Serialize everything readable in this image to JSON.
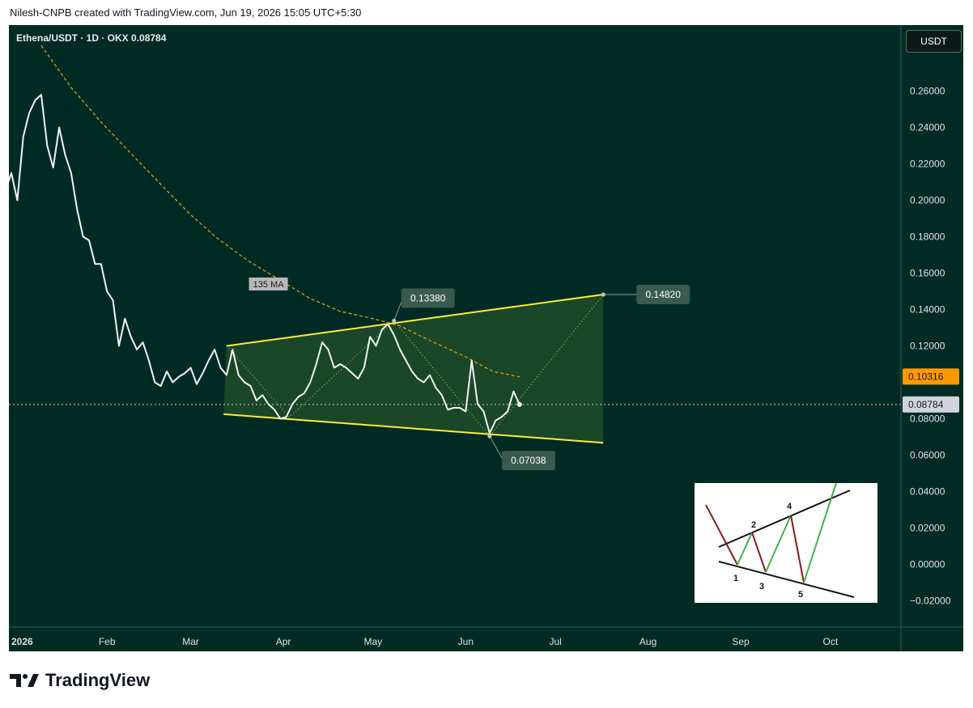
{
  "header": {
    "credit": "Nilesh-CNPB created with TradingView.com, Jun 19, 2026 15:05 UTC+5:30"
  },
  "symbol": {
    "title": "Ethena/USDT · 1D · OKX  0.08784",
    "currency": "USDT"
  },
  "footer": {
    "brand": "TradingView"
  },
  "colors": {
    "background": "#002b24",
    "price_line": "#f2f2f2",
    "channel": "#ffeb3b",
    "ma": "#f0a020",
    "ma_badge": "#ff9800",
    "price_badge": "#d1d4dc",
    "label_box": "#3a5a50"
  },
  "chart_data": {
    "type": "line",
    "title": "Ethena/USDT · 1D · OKX",
    "ylim": [
      -0.028,
      0.285
    ],
    "y_ticks": [
      "0.26000",
      "0.24000",
      "0.22000",
      "0.20000",
      "0.18000",
      "0.16000",
      "0.14000",
      "0.12000",
      "0.08000",
      "0.06000",
      "0.04000",
      "0.02000",
      "0.00000",
      "−0.02000"
    ],
    "x_ticks": [
      "2026",
      "Feb",
      "Mar",
      "Apr",
      "May",
      "Jun",
      "Jul",
      "Aug",
      "Sep",
      "Oct"
    ],
    "series": [
      {
        "name": "Ethena/USDT",
        "x": [
          "2025-12-27",
          "2025-12-29",
          "2025-12-31",
          "2026-01-02",
          "2026-01-04",
          "2026-01-06",
          "2026-01-08",
          "2026-01-10",
          "2026-01-12",
          "2026-01-14",
          "2026-01-16",
          "2026-01-18",
          "2026-01-20",
          "2026-01-22",
          "2026-01-24",
          "2026-01-26",
          "2026-01-28",
          "2026-01-30",
          "2026-02-01",
          "2026-02-03",
          "2026-02-05",
          "2026-02-07",
          "2026-02-09",
          "2026-02-11",
          "2026-02-13",
          "2026-02-15",
          "2026-02-17",
          "2026-02-19",
          "2026-02-21",
          "2026-02-23",
          "2026-02-25",
          "2026-02-27",
          "2026-03-01",
          "2026-03-03",
          "2026-03-05",
          "2026-03-07",
          "2026-03-09",
          "2026-03-11",
          "2026-03-13",
          "2026-03-15",
          "2026-03-17",
          "2026-03-19",
          "2026-03-21",
          "2026-03-23",
          "2026-03-25",
          "2026-03-27",
          "2026-03-29",
          "2026-03-31",
          "2026-04-02",
          "2026-04-04",
          "2026-04-06",
          "2026-04-08",
          "2026-04-10",
          "2026-04-12",
          "2026-04-14",
          "2026-04-16",
          "2026-04-18",
          "2026-04-20",
          "2026-04-22",
          "2026-04-24",
          "2026-04-26",
          "2026-04-28",
          "2026-04-30",
          "2026-05-02",
          "2026-05-04",
          "2026-05-06",
          "2026-05-08",
          "2026-05-10",
          "2026-05-12",
          "2026-05-14",
          "2026-05-16",
          "2026-05-18",
          "2026-05-20",
          "2026-05-22",
          "2026-05-24",
          "2026-05-26",
          "2026-05-28",
          "2026-05-30",
          "2026-06-01",
          "2026-06-03",
          "2026-06-05",
          "2026-06-07",
          "2026-06-09",
          "2026-06-11",
          "2026-06-13",
          "2026-06-15",
          "2026-06-17",
          "2026-06-19"
        ],
        "values": [
          0.218,
          0.205,
          0.215,
          0.2,
          0.235,
          0.248,
          0.255,
          0.258,
          0.23,
          0.218,
          0.24,
          0.225,
          0.215,
          0.195,
          0.18,
          0.178,
          0.165,
          0.165,
          0.15,
          0.145,
          0.12,
          0.135,
          0.125,
          0.118,
          0.122,
          0.112,
          0.1,
          0.098,
          0.106,
          0.1,
          0.103,
          0.105,
          0.108,
          0.099,
          0.105,
          0.112,
          0.118,
          0.108,
          0.104,
          0.118,
          0.104,
          0.1,
          0.098,
          0.09,
          0.093,
          0.088,
          0.085,
          0.08,
          0.081,
          0.088,
          0.092,
          0.094,
          0.1,
          0.11,
          0.122,
          0.118,
          0.108,
          0.11,
          0.108,
          0.105,
          0.102,
          0.108,
          0.125,
          0.12,
          0.129,
          0.132,
          0.126,
          0.118,
          0.112,
          0.106,
          0.102,
          0.1,
          0.104,
          0.097,
          0.093,
          0.085,
          0.086,
          0.086,
          0.084,
          0.112,
          0.088,
          0.084,
          0.072,
          0.079,
          0.081,
          0.084,
          0.095,
          0.08784
        ]
      },
      {
        "name": "135 MA",
        "x": [
          "2026-01-10",
          "2026-01-20",
          "2026-01-30",
          "2026-02-10",
          "2026-02-20",
          "2026-03-01",
          "2026-03-10",
          "2026-03-20",
          "2026-04-01",
          "2026-04-10",
          "2026-04-20",
          "2026-05-01",
          "2026-05-10",
          "2026-05-20",
          "2026-06-01",
          "2026-06-10",
          "2026-06-19"
        ],
        "values": [
          0.285,
          0.262,
          0.243,
          0.224,
          0.207,
          0.192,
          0.179,
          0.167,
          0.155,
          0.146,
          0.139,
          0.135,
          0.131,
          0.123,
          0.114,
          0.106,
          0.103
        ]
      }
    ],
    "channel": {
      "upper": [
        [
          "2026-03-13",
          0.12
        ],
        [
          "2026-07-17",
          0.1482
        ]
      ],
      "lower": [
        [
          "2026-03-12",
          0.0825
        ],
        [
          "2026-07-17",
          0.0668
        ]
      ]
    },
    "annotations": [
      {
        "text": "0.13380",
        "x": "2026-05-08",
        "y": 0.1338
      },
      {
        "text": "0.14820",
        "x": "2026-07-17",
        "y": 0.1482
      },
      {
        "text": "0.07038",
        "x": "2026-06-09",
        "y": 0.07038
      },
      {
        "text": "135 MA",
        "x": "2026-03-27",
        "y": 0.154
      }
    ],
    "price_badges": {
      "ma": "0.10316",
      "last": "0.08784"
    },
    "inset_labels": [
      "1",
      "2",
      "3",
      "4",
      "5"
    ]
  }
}
